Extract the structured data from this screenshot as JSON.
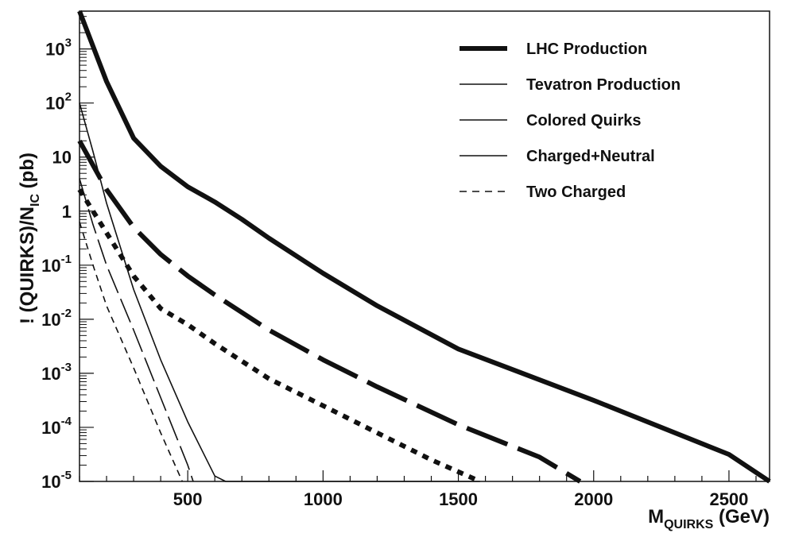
{
  "chart_data": {
    "type": "line",
    "x_label": "M",
    "x_label_sub": "QUIRKS",
    "x_label_unit": " (GeV)",
    "y_label_lead": "! (QUIRKS)/N",
    "y_label_sub": "IC",
    "y_label_unit": " (pb)",
    "xlim": [
      100,
      2650
    ],
    "ylim_log10": [
      -5,
      3.7
    ],
    "x_ticks": [
      {
        "value": 500,
        "label": "500"
      },
      {
        "value": 1000,
        "label": "1000"
      },
      {
        "value": 1500,
        "label": "1500"
      },
      {
        "value": 2000,
        "label": "2000"
      },
      {
        "value": 2500,
        "label": "2500"
      }
    ],
    "y_ticks": [
      {
        "log10": 3,
        "base": "10",
        "exp": "3"
      },
      {
        "log10": 2,
        "base": "10",
        "exp": "2"
      },
      {
        "log10": 1,
        "base": "10",
        "exp": ""
      },
      {
        "log10": 0,
        "base": "1",
        "exp": ""
      },
      {
        "log10": -1,
        "base": "10",
        "exp": "-1"
      },
      {
        "log10": -2,
        "base": "10",
        "exp": "-2"
      },
      {
        "log10": -3,
        "base": "10",
        "exp": "-3"
      },
      {
        "log10": -4,
        "base": "10",
        "exp": "-4"
      },
      {
        "log10": -5,
        "base": "10",
        "exp": "-5"
      }
    ],
    "legend": {
      "position": "top-right",
      "entries": [
        {
          "label": "LHC Production",
          "style": "thick-solid"
        },
        {
          "label": "Tevatron Production",
          "style": "thin-solid"
        },
        {
          "label": "Colored Quirks",
          "style": "thin-solid"
        },
        {
          "label": "Charged+Neutral",
          "style": "thin-solid"
        },
        {
          "label": "Two Charged",
          "style": "thin-dashed"
        }
      ]
    },
    "series": [
      {
        "group": "LHC Production",
        "kind": "Colored Quirks",
        "width": 6,
        "dash": "",
        "points": [
          [
            100,
            3.7
          ],
          [
            200,
            2.4
          ],
          [
            300,
            1.35
          ],
          [
            400,
            0.83
          ],
          [
            500,
            0.45
          ],
          [
            600,
            0.17
          ],
          [
            700,
            -0.15
          ],
          [
            800,
            -0.5
          ],
          [
            1000,
            -1.15
          ],
          [
            1200,
            -1.75
          ],
          [
            1500,
            -2.55
          ],
          [
            2000,
            -3.5
          ],
          [
            2500,
            -4.5
          ],
          [
            2650,
            -5.0
          ]
        ]
      },
      {
        "group": "LHC Production",
        "kind": "Charged+Neutral",
        "width": 6,
        "dash": "55 14",
        "points": [
          [
            100,
            1.3
          ],
          [
            200,
            0.4
          ],
          [
            300,
            -0.3
          ],
          [
            400,
            -0.8
          ],
          [
            500,
            -1.2
          ],
          [
            600,
            -1.55
          ],
          [
            800,
            -2.2
          ],
          [
            1000,
            -2.75
          ],
          [
            1200,
            -3.25
          ],
          [
            1500,
            -3.95
          ],
          [
            1800,
            -4.55
          ],
          [
            1950,
            -5.0
          ]
        ]
      },
      {
        "group": "LHC Production",
        "kind": "Two Charged",
        "width": 6,
        "dash": "8 8",
        "points": [
          [
            100,
            0.4
          ],
          [
            200,
            -0.4
          ],
          [
            300,
            -1.2
          ],
          [
            400,
            -1.8
          ],
          [
            500,
            -2.1
          ],
          [
            600,
            -2.45
          ],
          [
            800,
            -3.1
          ],
          [
            1000,
            -3.6
          ],
          [
            1200,
            -4.1
          ],
          [
            1400,
            -4.6
          ],
          [
            1580,
            -5.0
          ]
        ]
      },
      {
        "group": "Tevatron Production",
        "kind": "Colored Quirks",
        "width": 1.6,
        "dash": "",
        "points": [
          [
            100,
            2.0
          ],
          [
            150,
            1.1
          ],
          [
            200,
            0.15
          ],
          [
            300,
            -1.45
          ],
          [
            400,
            -2.75
          ],
          [
            500,
            -3.9
          ],
          [
            600,
            -4.9
          ],
          [
            640,
            -5.0
          ],
          [
            1580,
            -5.0
          ]
        ]
      },
      {
        "group": "Tevatron Production",
        "kind": "Charged+Neutral",
        "width": 1.6,
        "dash": "32 8",
        "points": [
          [
            100,
            0.6
          ],
          [
            150,
            -0.25
          ],
          [
            200,
            -1.0
          ],
          [
            300,
            -2.2
          ],
          [
            400,
            -3.45
          ],
          [
            500,
            -4.7
          ],
          [
            520,
            -5.0
          ]
        ]
      },
      {
        "group": "Tevatron Production",
        "kind": "Two Charged",
        "width": 1.6,
        "dash": "8 6",
        "points": [
          [
            100,
            -0.2
          ],
          [
            150,
            -1.0
          ],
          [
            200,
            -1.75
          ],
          [
            300,
            -2.9
          ],
          [
            400,
            -4.1
          ],
          [
            480,
            -5.0
          ]
        ]
      }
    ]
  }
}
